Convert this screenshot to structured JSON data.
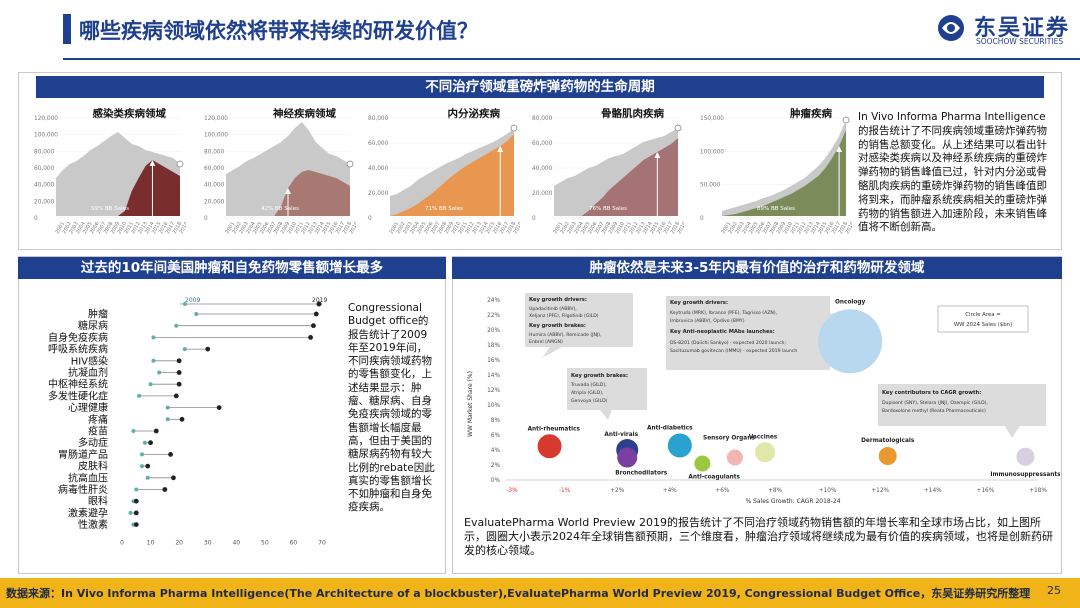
{
  "header": {
    "title": "哪些疾病领域依然将带来持续的研发价值？",
    "logo_cn": "东吴证券",
    "logo_en": "SOOCHOW SECURITIES",
    "logo_abbr": "SCS"
  },
  "section1": {
    "banner": "不同治疗领域重磅炸弹药物的生命周期",
    "text": "In Vivo Informa Pharma Intelligence的报告统计了不同疾病领域重磅炸弹药物的销售总额变化。从上述结果可以看出针对感染类疾病以及神经系统疾病的重磅炸弹药物的销售峰值已过，针对内分泌或骨骼肌肉疾病的重磅炸弹药物的销售峰值即将到来，而肿瘤系统疾病相关的重磅炸弹药物的销售额进入加速阶段，未来销售峰值将不断创新高。",
    "charts": [
      {
        "title": "感染类疾病领域",
        "yticks": [
          "120,000",
          "100,000",
          "80,000",
          "60,000",
          "40,000",
          "20,000",
          "0"
        ],
        "note": "59% BB Sales",
        "color": "#7a2d2d"
      },
      {
        "title": "神经疾病领域",
        "yticks": [
          "120,000",
          "100,000",
          "80,000",
          "60,000",
          "40,000",
          "20,000",
          "0"
        ],
        "note": "42% BB Sales",
        "color": "#a87872"
      },
      {
        "title": "内分泌疾病",
        "yticks": [
          "80,000",
          "60,000",
          "40,000",
          "20,000",
          "0"
        ],
        "note": "71% BB Sales",
        "color": "#e99650"
      },
      {
        "title": "骨骼肌肉疾病",
        "yticks": [
          "80,000",
          "60,000",
          "40,000",
          "20,000",
          "0"
        ],
        "note": "76% BB Sales",
        "color": "#a57376"
      },
      {
        "title": "肿瘤疾病",
        "yticks": [
          "150,000",
          "100,000",
          "50,000",
          "0"
        ],
        "note": "89% BB Sales",
        "color": "#7b8c5a"
      }
    ],
    "years": [
      "2001",
      "2002",
      "2003",
      "2004",
      "2005",
      "2006",
      "2007",
      "2008",
      "2009",
      "2010",
      "2011",
      "2012",
      "2013",
      "2014",
      "2015",
      "2016",
      "2017",
      "2018",
      "2019"
    ]
  },
  "section2": {
    "banner": "过去的10年间美国肿瘤和自免药物零售额增长最多",
    "legend_2009": "2009",
    "legend_2019": "2019",
    "xticks": [
      "0",
      "10",
      "20",
      "30",
      "40",
      "50",
      "60",
      "70"
    ],
    "text": "Congressional Budget office的报告统计了2009年至2019年间，不同疾病领域药物的零售额变化，上述结果显示：肿瘤、糖尿病、自身免疫疾病领域的零售额增长幅度最高，但由于美国的糖尿病药物有较大比例的rebate因此真实的零售额增长不如肿瘤和自身免疫疾病。",
    "chart_data": {
      "type": "dot-range",
      "title": "",
      "categories": [
        "肿瘤",
        "糖尿病",
        "自身免疫疾病",
        "呼吸系统疾病",
        "HIV感染",
        "抗凝血剂",
        "中枢神经系统",
        "多发性硬化症",
        "心理健康",
        "疼痛",
        "疫苗",
        "多动症",
        "胃肠道产品",
        "皮肤科",
        "抗高血压",
        "病毒性肝炎",
        "眼科",
        "激素避孕",
        "性激素"
      ],
      "series": [
        {
          "name": "2009",
          "values": [
            26,
            19,
            11,
            22,
            11,
            13,
            10,
            6,
            16,
            16,
            4,
            8,
            7,
            7,
            9,
            5,
            4,
            3,
            4
          ]
        },
        {
          "name": "2019",
          "values": [
            68,
            67,
            66,
            30,
            20,
            20,
            20,
            19,
            34,
            21,
            12,
            10,
            17,
            9,
            18,
            15,
            5,
            5,
            5
          ]
        }
      ],
      "xlim": [
        0,
        70
      ]
    }
  },
  "section3": {
    "banner": "肿瘤依然是未来3-5年内最有价值的治疗和药物研发领域",
    "ylabel": "WW Market Share (%)",
    "xlabel": "% Sales Growth: CAGR 2018-24",
    "circle_note_1": "Circle Area =",
    "circle_note_2": "WW 2024 Sales ($bn)",
    "yticks": [
      "24%",
      "22%",
      "20%",
      "18%",
      "16%",
      "14%",
      "12%",
      "10%",
      "8%",
      "6%",
      "4%",
      "2%",
      "0%"
    ],
    "xticks": [
      "-3%",
      "-1%",
      "+2%",
      "+4%",
      "+6%",
      "+8%",
      "+10%",
      "+12%",
      "+14%",
      "+16%",
      "+18%"
    ],
    "callouts": {
      "c1_h1": "Key growth drivers:",
      "c1_l1": "Upadacitinib (ABBV),",
      "c1_l2": "Xeljanz (PFE), Filgotinib (GILD)",
      "c1_h2": "Key growth brakes:",
      "c1_l3": "Humira (ABBV), Remicade (JNJ),",
      "c1_l4": "Enbrel (AMGN)",
      "c2_h1": "Key growth drivers:",
      "c2_l1": "Keytruda (MRK), Ibrance (PFE), Tagrisso (AZN),",
      "c2_l2": "Imbruvica (ABBV), Opdivo (BMY)",
      "c2_h2": "Key Anti-neoplastic MAbs launches:",
      "c2_l3": "DS-8201 (Daiichi Sankyo) - expected 2020 launch;",
      "c2_l4": "Sacituzumab govitecan (IMMU) - expected 2019 launch",
      "c3_h1": "Key growth brakes:",
      "c3_l1": "Truvada (GILD),",
      "c3_l2": "Atripla (GILD),",
      "c3_l3": "Genvoya (GILD)",
      "c4_h1": "Key contributors to CAGR growth:",
      "c4_l1": "Dupixent (SNY), Stelara (JNJ), Ozempic (GILD),",
      "c4_l2": "Bardoxolone methyl (Reata Pharmaceuticals)"
    },
    "chart_data": {
      "type": "scatter",
      "title": "",
      "xlabel": "% Sales Growth: CAGR 2018-24",
      "ylabel": "WW Market Share (%)",
      "xlim": [
        -3,
        18
      ],
      "ylim": [
        0,
        24
      ],
      "points": [
        {
          "label": "Oncology",
          "x": 10.5,
          "y": 18.5,
          "color": "#b8d8f0"
        },
        {
          "label": "Anti-rheumatics",
          "x": -1.5,
          "y": 4.5,
          "color": "#d63a2e"
        },
        {
          "label": "Anti-virals",
          "x": 1.6,
          "y": 4.0,
          "color": "#2e3f8f"
        },
        {
          "label": "Bronchodilators",
          "x": 1.6,
          "y": 3.0,
          "color": "#7a3fa0"
        },
        {
          "label": "Anti-diabetics",
          "x": 3.7,
          "y": 4.6,
          "color": "#2aa2d0"
        },
        {
          "label": "Anti-coagulants",
          "x": 4.6,
          "y": 2.2,
          "color": "#9ac83e"
        },
        {
          "label": "Sensory Organs",
          "x": 5.9,
          "y": 3.0,
          "color": "#f2b6b0"
        },
        {
          "label": "Vaccines",
          "x": 7.1,
          "y": 3.7,
          "color": "#dfe8a8"
        },
        {
          "label": "Dermatologicals",
          "x": 12.0,
          "y": 3.2,
          "color": "#e89a32"
        },
        {
          "label": "Immunosuppressants",
          "x": 17.5,
          "y": 3.1,
          "color": "#d8cfe0"
        }
      ]
    },
    "text": "EvaluatePharma World Preview 2019的报告统计了不同治疗领域药物销售额的年增长率和全球市场占比，如上图所示，圆圈大小表示2024年全球销售额预期，三个维度看，肿瘤治疗领域将继续成为最有价值的疾病领域，也将是创新药研发的核心领域。"
  },
  "footer": {
    "source": "数据来源：In Vivo Informa Pharma Intelligence(The Architecture of a blockbuster),EvaluatePharma World Preview 2019, Congressional Budget Office，东吴证券研究所整理",
    "page": "25"
  }
}
